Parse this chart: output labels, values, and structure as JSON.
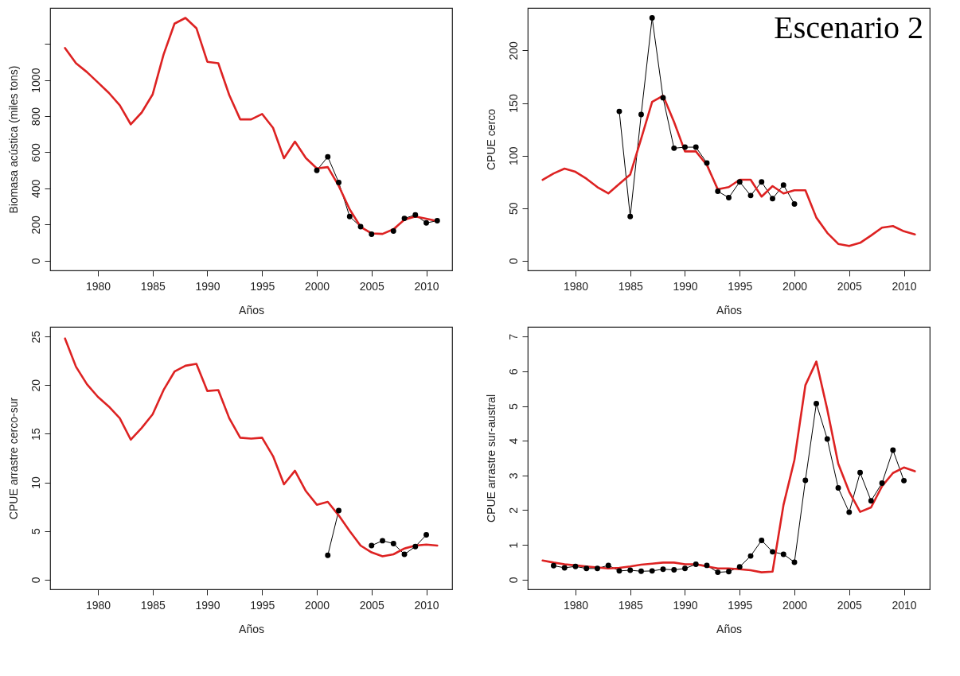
{
  "chart_data": [
    {
      "type": "line",
      "ylabel": "Biomasa acústica (miles tons)",
      "xlabel": "Años",
      "x": [
        1977,
        1978,
        1979,
        1980,
        1981,
        1982,
        1983,
        1984,
        1985,
        1986,
        1987,
        1988,
        1989,
        1990,
        1991,
        1992,
        1993,
        1994,
        1995,
        1996,
        1997,
        1998,
        1999,
        2000,
        2001,
        2002,
        2003,
        2004,
        2005,
        2006,
        2007,
        2008,
        2009,
        2010,
        2011
      ],
      "xlim": [
        1975.64,
        2012.36
      ],
      "xticks": [
        1980,
        1985,
        1990,
        1995,
        2000,
        2005,
        2010
      ],
      "ylim": [
        -54,
        1399
      ],
      "yticks": [
        0,
        200,
        400,
        600,
        800,
        1000,
        {
          "value": 1200,
          "label": null
        }
      ],
      "grid": false,
      "marker": "circle",
      "series": [
        {
          "color": "#000000",
          "values": [
            null,
            null,
            null,
            null,
            null,
            null,
            null,
            null,
            null,
            null,
            null,
            null,
            null,
            null,
            null,
            null,
            null,
            null,
            null,
            null,
            null,
            null,
            null,
            500,
            575,
            433,
            244,
            188,
            146,
            null,
            164,
            234,
            253,
            209,
            221
          ]
        },
        {
          "color": "#dd2222",
          "marker": "none",
          "values": [
            1177,
            1093,
            1044,
            987,
            929,
            860,
            755,
            820,
            920,
            1141,
            1312,
            1344,
            1287,
            1101,
            1093,
            917,
            782,
            782,
            812,
            735,
            567,
            659,
            568,
            511,
            518,
            414,
            284,
            187,
            151,
            148,
            174,
            227,
            244,
            232,
            219
          ]
        }
      ]
    },
    {
      "type": "line",
      "ylabel": "CPUE cerco",
      "xlabel": "Años",
      "annotations": [
        "Escenario 2"
      ],
      "x": [
        1977,
        1978,
        1979,
        1980,
        1981,
        1982,
        1983,
        1984,
        1985,
        1986,
        1987,
        1988,
        1989,
        1990,
        1991,
        1992,
        1993,
        1994,
        1995,
        1996,
        1997,
        1998,
        1999,
        2000,
        2001,
        2002,
        2003,
        2004,
        2005,
        2006,
        2007,
        2008,
        2009,
        2010,
        2011
      ],
      "xlim": [
        1975.64,
        2012.36
      ],
      "xticks": [
        1980,
        1985,
        1990,
        1995,
        2000,
        2005,
        2010
      ],
      "ylim": [
        -9.2,
        240.4
      ],
      "yticks": [
        0,
        50,
        100,
        150,
        200
      ],
      "grid": false,
      "marker": "circle",
      "series": [
        {
          "color": "#000000",
          "values": [
            null,
            null,
            null,
            null,
            null,
            null,
            null,
            142,
            42,
            139,
            231,
            155,
            107,
            108,
            108,
            93,
            66,
            60,
            75,
            62,
            75,
            59,
            72,
            54,
            null,
            null,
            null,
            null,
            null,
            null,
            null,
            null,
            null,
            null,
            null
          ]
        },
        {
          "color": "#dd2222",
          "marker": "none",
          "values": [
            77,
            83,
            87.6,
            84.5,
            78,
            70,
            64,
            73,
            82,
            116,
            151,
            157,
            132,
            104,
            104,
            91,
            68,
            70,
            77,
            77,
            61,
            71,
            64,
            67,
            67,
            41,
            26.5,
            16,
            14,
            17,
            24,
            31.5,
            33,
            28,
            25
          ]
        }
      ]
    },
    {
      "type": "line",
      "ylabel": "CPUE arrastre cerco-sur",
      "xlabel": "Años",
      "x": [
        1977,
        1978,
        1979,
        1980,
        1981,
        1982,
        1983,
        1984,
        1985,
        1986,
        1987,
        1988,
        1989,
        1990,
        1991,
        1992,
        1993,
        1994,
        1995,
        1996,
        1997,
        1998,
        1999,
        2000,
        2001,
        2002,
        2003,
        2004,
        2005,
        2006,
        2007,
        2008,
        2009,
        2010,
        2011
      ],
      "xlim": [
        1975.64,
        2012.36
      ],
      "xticks": [
        1980,
        1985,
        1990,
        1995,
        2000,
        2005,
        2010
      ],
      "ylim": [
        -1.0,
        26.0
      ],
      "yticks": [
        0,
        5,
        10,
        15,
        20,
        25
      ],
      "grid": false,
      "marker": "circle",
      "series": [
        {
          "color": "#000000",
          "values": [
            null,
            null,
            null,
            null,
            null,
            null,
            null,
            null,
            null,
            null,
            null,
            null,
            null,
            null,
            null,
            null,
            null,
            null,
            null,
            null,
            null,
            null,
            null,
            null,
            2.5,
            7.1,
            null,
            null,
            3.5,
            4.0,
            3.7,
            2.6,
            3.4,
            4.6,
            null
          ]
        },
        {
          "color": "#dd2222",
          "marker": "none",
          "values": [
            24.8,
            21.9,
            20.1,
            18.8,
            17.8,
            16.6,
            14.4,
            15.6,
            17.0,
            19.5,
            21.4,
            22.0,
            22.2,
            19.4,
            19.5,
            16.6,
            14.6,
            14.5,
            14.6,
            12.7,
            9.8,
            11.2,
            9.1,
            7.7,
            8.0,
            6.6,
            5.0,
            3.5,
            2.8,
            2.4,
            2.6,
            3.2,
            3.5,
            3.6,
            3.5
          ]
        }
      ]
    },
    {
      "type": "line",
      "ylabel": "CPUE arrastre sur-austral",
      "xlabel": "Años",
      "x": [
        1977,
        1978,
        1979,
        1980,
        1981,
        1982,
        1983,
        1984,
        1985,
        1986,
        1987,
        1988,
        1989,
        1990,
        1991,
        1992,
        1993,
        1994,
        1995,
        1996,
        1997,
        1998,
        1999,
        2000,
        2001,
        2002,
        2003,
        2004,
        2005,
        2006,
        2007,
        2008,
        2009,
        2010,
        2011
      ],
      "xlim": [
        1975.64,
        2012.36
      ],
      "xticks": [
        1980,
        1985,
        1990,
        1995,
        2000,
        2005,
        2010
      ],
      "ylim": [
        -0.28,
        7.28
      ],
      "yticks": [
        0,
        1,
        2,
        3,
        4,
        5,
        6,
        7
      ],
      "grid": false,
      "marker": "circle",
      "series": [
        {
          "color": "#000000",
          "values": [
            null,
            0.4,
            0.34,
            0.38,
            0.32,
            0.32,
            0.41,
            0.25,
            0.27,
            0.24,
            0.25,
            0.3,
            0.28,
            0.32,
            0.44,
            0.41,
            0.21,
            0.23,
            0.37,
            0.68,
            1.13,
            0.8,
            0.73,
            0.5,
            2.86,
            5.07,
            4.05,
            2.64,
            1.94,
            3.08,
            2.27,
            2.78,
            3.73,
            2.85,
            null
          ]
        },
        {
          "color": "#dd2222",
          "marker": "none",
          "values": [
            0.55,
            0.49,
            0.44,
            0.41,
            0.38,
            0.35,
            0.32,
            0.34,
            0.38,
            0.43,
            0.46,
            0.49,
            0.49,
            0.44,
            0.44,
            0.38,
            0.32,
            0.32,
            0.3,
            0.27,
            0.21,
            0.23,
            2.15,
            3.45,
            5.6,
            6.28,
            4.9,
            3.34,
            2.53,
            1.95,
            2.08,
            2.69,
            3.07,
            3.23,
            3.12
          ]
        }
      ]
    }
  ]
}
